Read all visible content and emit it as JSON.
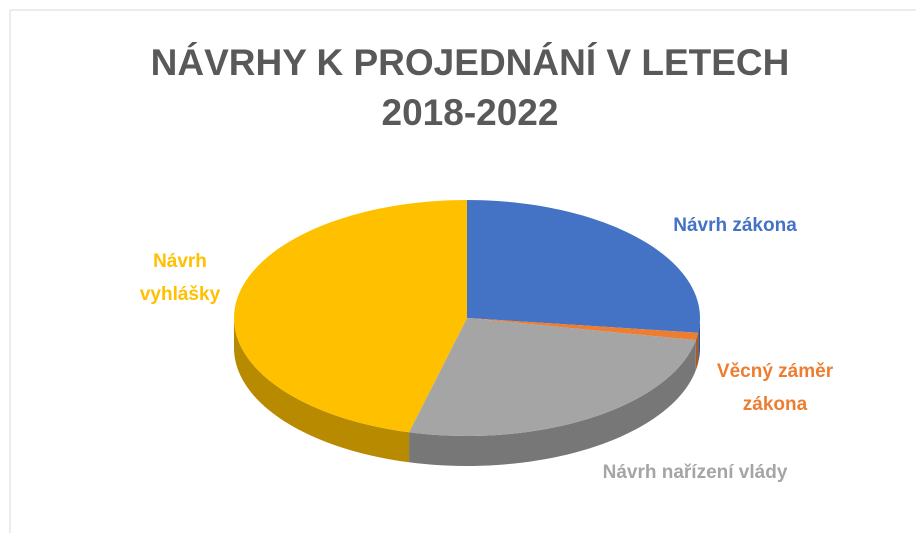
{
  "chart_data": {
    "type": "pie3d",
    "title": "NÁVRHY K PROJEDNÁNÍ V LETECH 2018-2022",
    "categories": [
      "Návrh zákona",
      "Věcný záměr zákona",
      "Návrh nařízení vlády",
      "Návrh vyhlášky"
    ],
    "values": [
      27,
      1,
      26,
      46
    ],
    "colors": [
      "#4472c4",
      "#ed7d31",
      "#a5a5a5",
      "#ffc000"
    ]
  }
}
